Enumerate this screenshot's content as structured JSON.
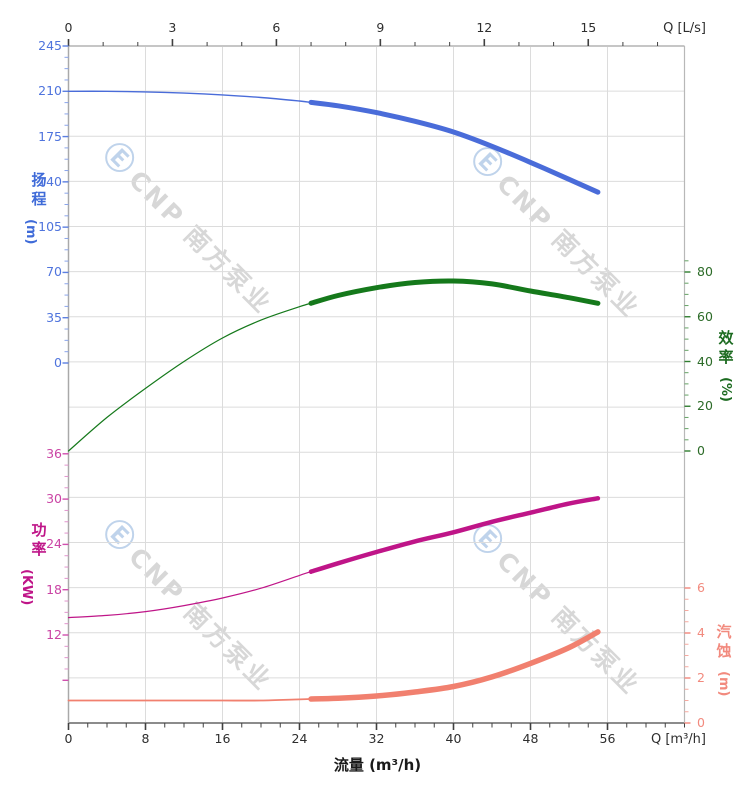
{
  "watermark": {
    "logo": "Ⓔ",
    "text": "CNP 南方泵业"
  },
  "corner_units": {
    "top_right": "Q [L/s]",
    "bottom_right": "Q [m³/h]"
  },
  "axes": {
    "flow_top": {
      "unit_label": "Q [L/s]",
      "ticks": [
        0,
        3,
        6,
        9,
        12,
        15
      ]
    },
    "flow_bottom": {
      "unit_label": "Q [m³/h]",
      "axis_title": "流量 (m³/h)",
      "ticks": [
        0,
        8,
        16,
        24,
        32,
        40,
        48,
        56
      ]
    },
    "head_left": {
      "title": "扬程",
      "unit": "(m)",
      "ticks": [
        245,
        210,
        175,
        140,
        105,
        70,
        35,
        0
      ],
      "color": "#4a6cd9"
    },
    "power_left": {
      "title": "功率",
      "unit": "(KW)",
      "ticks": [
        36,
        30,
        24,
        18,
        12
      ],
      "color": "#bf1588"
    },
    "eff_right": {
      "title": "效率",
      "unit": "(%)",
      "ticks": [
        80,
        60,
        40,
        20,
        0
      ],
      "color": "#15791b"
    },
    "npsh_right": {
      "title": "汽蚀",
      "unit": "(m)",
      "ticks": [
        6,
        4,
        2,
        0
      ],
      "color": "#f1806f"
    }
  },
  "chart_data": {
    "type": "line",
    "title": "",
    "xlabel": "流量 (m³/h)",
    "x_unit_top": "Q [L/s]",
    "x_unit_bottom": "Q [m³/h]",
    "top_ticks_Ls": [
      0,
      3,
      6,
      9,
      12,
      15
    ],
    "bottom_ticks_m3h": [
      0,
      8,
      16,
      24,
      32,
      40,
      48,
      56
    ],
    "x_m3h": [
      0,
      4,
      8,
      12,
      16,
      20,
      24,
      28,
      32,
      36,
      40,
      44,
      48,
      52,
      55
    ],
    "series": [
      {
        "name": "扬程",
        "unit": "m",
        "color": "#4a6cd9",
        "axis_range": [
          0,
          245
        ],
        "values": [
          210,
          210,
          209.5,
          208.6,
          207.2,
          205.2,
          202.5,
          198.8,
          193.5,
          186.8,
          178.5,
          167.5,
          155,
          142,
          132
        ]
      },
      {
        "name": "效率",
        "unit": "%",
        "color": "#15791b",
        "axis_range": [
          0,
          80
        ],
        "values": [
          0,
          15,
          28,
          40,
          50.5,
          58.5,
          64.5,
          69.5,
          73,
          75.3,
          76,
          74.7,
          71.5,
          68.5,
          66
        ]
      },
      {
        "name": "功率",
        "unit": "KW",
        "color": "#bf1588",
        "axis_range": [
          12,
          36
        ],
        "values": [
          14.3,
          14.6,
          15.1,
          15.9,
          16.9,
          18.2,
          19.9,
          21.5,
          23,
          24.4,
          25.6,
          27,
          28.2,
          29.4,
          30.1
        ]
      },
      {
        "name": "汽蚀",
        "unit": "m",
        "color": "#f1806f",
        "axis_range": [
          0,
          6
        ],
        "values": [
          1,
          1,
          1,
          1,
          1,
          1,
          1.05,
          1.1,
          1.2,
          1.38,
          1.62,
          2.05,
          2.65,
          3.35,
          4.05
        ]
      }
    ],
    "highlight_range_m3h": [
      25.2,
      55
    ],
    "grid": true,
    "legend": "none"
  }
}
